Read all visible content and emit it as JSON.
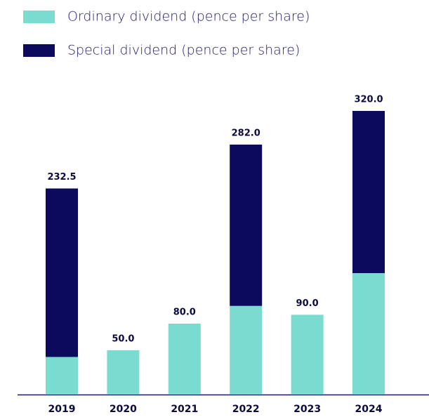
{
  "chart_data": {
    "type": "stacked_bar",
    "categories": [
      "2019",
      "2020",
      "2021",
      "2022",
      "2023",
      "2024"
    ],
    "series": [
      {
        "name": "Ordinary dividend (pence per share)",
        "color": "#7adcd0",
        "values": [
          42.4,
          50.0,
          80.0,
          100.0,
          90.0,
          137.0
        ]
      },
      {
        "name": "Special dividend (pence per share)",
        "color": "#0b0a5c",
        "values": [
          190.1,
          null,
          null,
          182.0,
          null,
          183.0
        ]
      }
    ],
    "totals": [
      232.5,
      50.0,
      80.0,
      282.0,
      90.0,
      320.0
    ],
    "total_labels": [
      "232.5",
      "50.0",
      "80.0",
      "282.0",
      "90.0",
      "320.0"
    ],
    "legend": "top-left"
  }
}
